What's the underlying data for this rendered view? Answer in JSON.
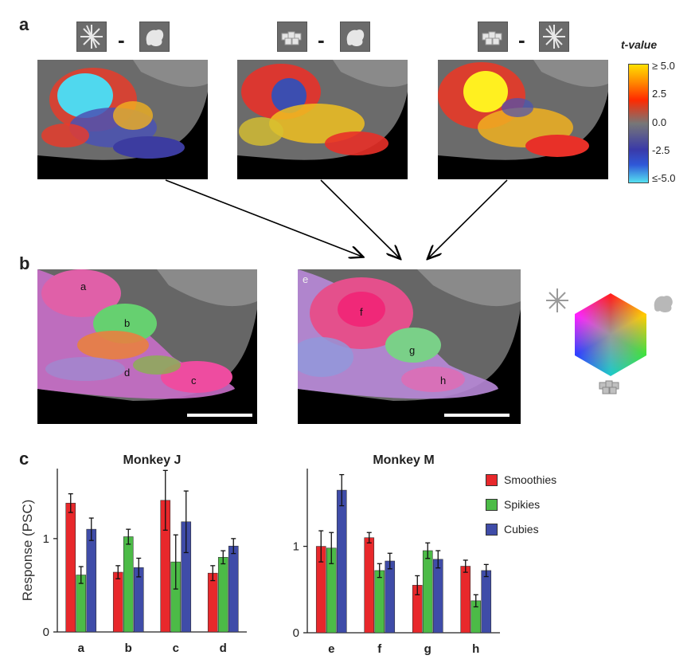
{
  "panel_labels": {
    "a": "a",
    "b": "b",
    "c": "c"
  },
  "panel_a": {
    "maps": [
      {
        "left_icon": "spikies-shape-icon",
        "minus": "-",
        "right_icon": "smoothies-shape-icon"
      },
      {
        "left_icon": "cubies-shape-icon",
        "minus": "-",
        "right_icon": "smoothies-shape-icon"
      },
      {
        "left_icon": "cubies-shape-icon",
        "minus": "-",
        "right_icon": "spikies-shape-icon"
      }
    ],
    "colorbar": {
      "title": "t-value",
      "ticks": [
        "≥ 5.0",
        "2.5",
        "0.0",
        "-2.5",
        "≤-5.0"
      ],
      "colors": [
        "#ffe000",
        "#ff2a00",
        "#777777",
        "#3a3aa8",
        "#55e0f0"
      ]
    }
  },
  "panel_b": {
    "map_left_rois": [
      "a",
      "b",
      "c",
      "d"
    ],
    "map_right_rois": [
      "e",
      "f",
      "g",
      "h"
    ],
    "hexagon_icons": [
      "spikies-shape-icon",
      "smoothies-shape-icon",
      "cubies-shape-icon"
    ]
  },
  "chart_data": [
    {
      "type": "bar",
      "title": "Monkey J",
      "ylabel": "Response (PSC)",
      "xlabel": "",
      "categories": [
        "a",
        "b",
        "c",
        "d"
      ],
      "ylim": [
        0,
        1.75
      ],
      "yticks": [
        "0",
        "1"
      ],
      "yticks_values": [
        0,
        1
      ],
      "series": [
        {
          "name": "Smoothies",
          "color": "#e8282b",
          "values": [
            1.38,
            0.64,
            1.41,
            0.63
          ],
          "errors": [
            0.1,
            0.07,
            0.32,
            0.08
          ]
        },
        {
          "name": "Spikies",
          "color": "#4cbb47",
          "values": [
            0.61,
            1.02,
            0.75,
            0.8
          ],
          "errors": [
            0.09,
            0.08,
            0.29,
            0.07
          ]
        },
        {
          "name": "Cubies",
          "color": "#3f4ca8",
          "values": [
            1.1,
            0.69,
            1.18,
            0.92
          ],
          "errors": [
            0.12,
            0.1,
            0.33,
            0.08
          ]
        }
      ]
    },
    {
      "type": "bar",
      "title": "Monkey M",
      "ylabel": "",
      "xlabel": "",
      "categories": [
        "e",
        "f",
        "g",
        "h"
      ],
      "ylim": [
        0,
        1.9
      ],
      "yticks": [
        "0",
        "1"
      ],
      "yticks_values": [
        0,
        1
      ],
      "series": [
        {
          "name": "Smoothies",
          "color": "#e8282b",
          "values": [
            1.0,
            1.1,
            0.55,
            0.77
          ],
          "errors": [
            0.18,
            0.06,
            0.11,
            0.07
          ]
        },
        {
          "name": "Spikies",
          "color": "#4cbb47",
          "values": [
            0.98,
            0.72,
            0.95,
            0.37
          ],
          "errors": [
            0.18,
            0.08,
            0.09,
            0.07
          ]
        },
        {
          "name": "Cubies",
          "color": "#3f4ca8",
          "values": [
            1.65,
            0.83,
            0.85,
            0.72
          ],
          "errors": [
            0.18,
            0.09,
            0.1,
            0.07
          ]
        }
      ]
    }
  ],
  "legend": [
    {
      "label": "Smoothies",
      "color": "#e8282b"
    },
    {
      "label": "Spikies",
      "color": "#4cbb47"
    },
    {
      "label": "Cubies",
      "color": "#3f4ca8"
    }
  ]
}
